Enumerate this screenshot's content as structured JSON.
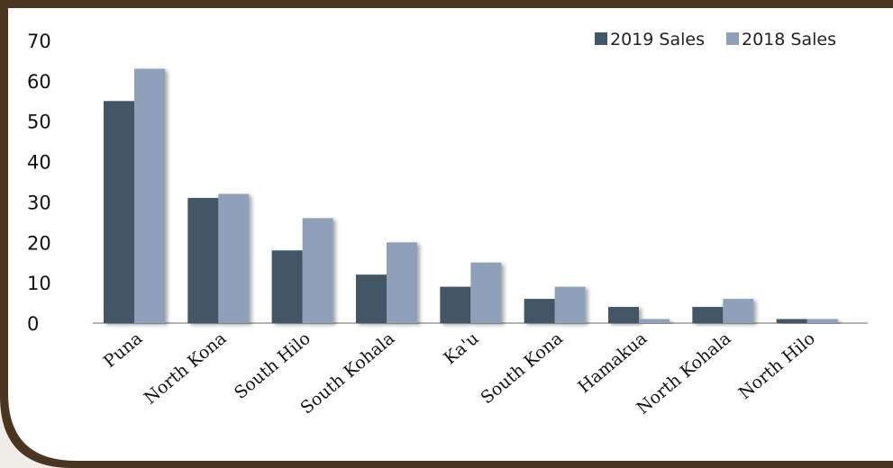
{
  "colors": {
    "series_2019": "#435665",
    "series_2018": "#8fa0bb",
    "frame": "#4a3521",
    "background": "#ffffff"
  },
  "chart_data": {
    "type": "bar",
    "categories": [
      "Puna",
      "North Kona",
      "South Hilo",
      "South Kohala",
      "Ka'u",
      "South Kona",
      "Hamakua",
      "North Kohala",
      "North Hilo"
    ],
    "series": [
      {
        "name": "2019 Sales",
        "values": [
          55,
          31,
          18,
          12,
          9,
          6,
          4,
          4,
          1
        ]
      },
      {
        "name": "2018 Sales",
        "values": [
          63,
          32,
          26,
          20,
          15,
          9,
          1,
          6,
          1
        ]
      }
    ],
    "title": "",
    "xlabel": "",
    "ylabel": "",
    "ylim": [
      0,
      70
    ],
    "yticks": [
      "0",
      "10",
      "20",
      "30",
      "40",
      "50",
      "60",
      "70"
    ],
    "grid": false,
    "legend": "top-right"
  }
}
